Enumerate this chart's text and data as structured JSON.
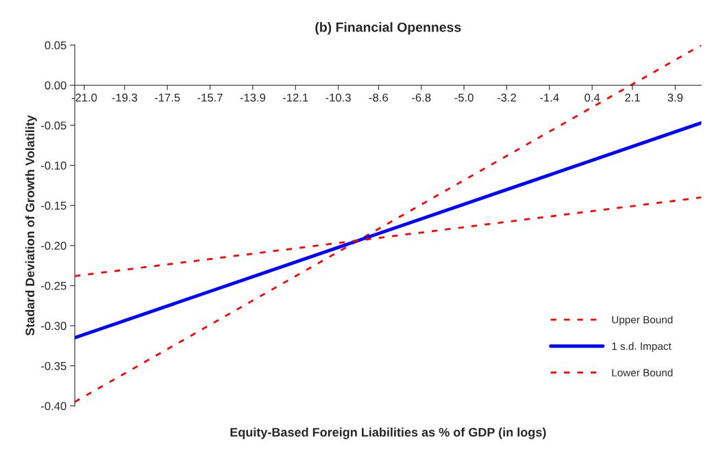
{
  "chart_data": {
    "type": "line",
    "title": "(b) Financial Openness",
    "xlabel": "Equity-Based Foreign Liabilities as % of GDP (in logs)",
    "ylabel": "Stadard Deviation of Growth Volatility",
    "x": [
      -21.4,
      5.0
    ],
    "series": [
      {
        "name": "Upper Bound",
        "color": "#ff0000",
        "line_style": "dashed",
        "values": [
          -0.395,
          0.05
        ]
      },
      {
        "name": "1 s.d. Impact",
        "color": "#0000ff",
        "line_style": "solid",
        "values": [
          -0.315,
          -0.047
        ]
      },
      {
        "name": "Lower Bound",
        "color": "#ff0000",
        "line_style": "dashed",
        "values": [
          -0.238,
          -0.14
        ]
      }
    ],
    "xlim": [
      -21.4,
      5.0
    ],
    "xticks": [
      {
        "value": -21.0,
        "label": "-21.0"
      },
      -19.3,
      -17.5,
      -15.7,
      -13.9,
      -12.1,
      -10.3,
      -8.6,
      -6.8,
      {
        "value": -5.0,
        "label": "-5.0"
      },
      -3.2,
      -1.4,
      0.4,
      2.1,
      3.9
    ],
    "ylim": [
      -0.4,
      0.05
    ],
    "yticks": [
      {
        "value": -0.4,
        "label": "-0.40"
      },
      {
        "value": -0.35,
        "label": "-0.35"
      },
      {
        "value": -0.3,
        "label": "-0.30"
      },
      {
        "value": -0.25,
        "label": "-0.25"
      },
      {
        "value": -0.2,
        "label": "-0.20"
      },
      {
        "value": -0.15,
        "label": "-0.15"
      },
      {
        "value": -0.1,
        "label": "-0.10"
      },
      {
        "value": -0.05,
        "label": "-0.05"
      },
      {
        "value": 0.0,
        "label": "0.00"
      },
      {
        "value": 0.05,
        "label": "0.05"
      }
    ],
    "grid": false,
    "legend": "bottom right",
    "marker": "none"
  }
}
